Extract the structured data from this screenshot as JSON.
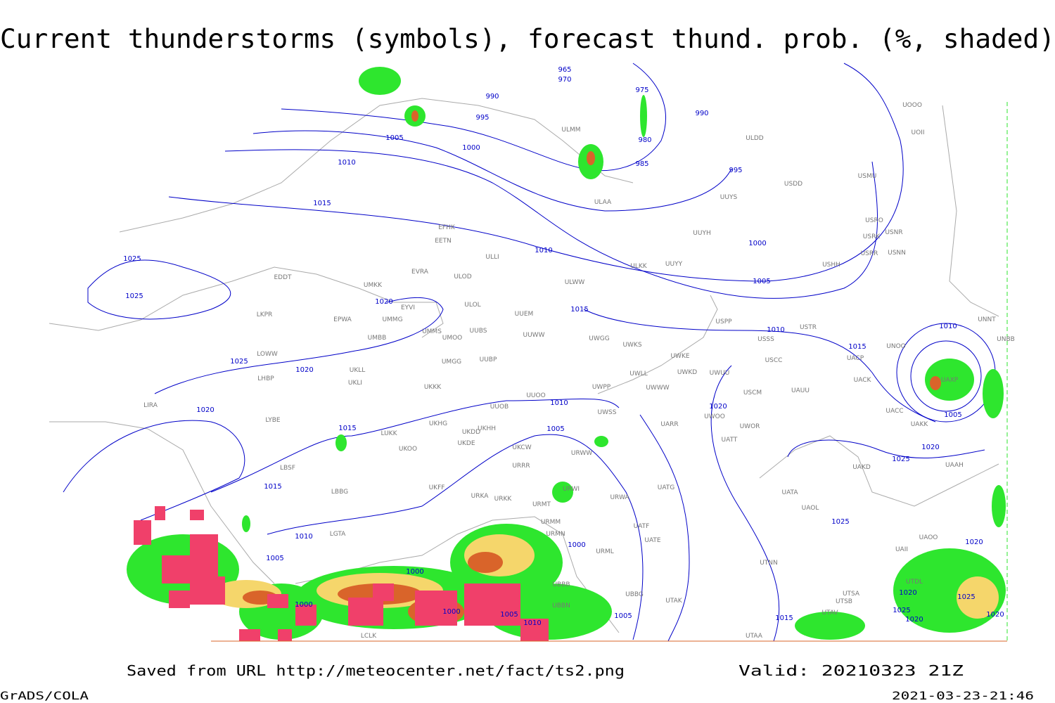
{
  "title": "Current thunderstorms (symbols), forecast thund. prob. (%, shaded)",
  "footer": {
    "source": "Saved from URL http://meteocenter.net/fact/ts2.png",
    "valid": "Valid: 20210323 21Z",
    "software": "GrADS/COLA",
    "timestamp": "2021-03-23-21:46"
  },
  "map": {
    "stations": [
      "UOOO",
      "UOII",
      "ULMM",
      "ULDD",
      "USMU",
      "USDD",
      "UUYS",
      "ULAA",
      "USRO",
      "USNR",
      "USRK",
      "UUYH",
      "EFHK",
      "EETN",
      "USRR",
      "USNN",
      "ULLI",
      "USHH",
      "ULKK",
      "UUYY",
      "EVRA",
      "ULOD",
      "EDDT",
      "UMKK",
      "ULWW",
      "ULOL",
      "EYVI",
      "UUEM",
      "LKPR",
      "EPWA",
      "UMMG",
      "USPP",
      "USTR",
      "UMMS",
      "UUBS",
      "UUWW",
      "UMOO",
      "UWGG",
      "USSS",
      "UMBB",
      "UWKS",
      "UNOO",
      "UNBB",
      "UNNT",
      "LOWW",
      "UWKE",
      "UACP",
      "USCC",
      "UMGG",
      "UUBP",
      "UKLL",
      "UWLL",
      "UWKD",
      "UWUU",
      "UACK",
      "UKLI",
      "LHBP",
      "UWWW",
      "UWPP",
      "USCM",
      "UAUU",
      "UAXP",
      "UKKK",
      "UUOO",
      "LIRA",
      "UUOB",
      "UWSS",
      "UACC",
      "UAKK",
      "LYBE",
      "UKHH",
      "UKHG",
      "UKDD",
      "UARR",
      "UWOO",
      "UWOR",
      "LUKK",
      "UKDE",
      "UATT",
      "UKOO",
      "UKCW",
      "URWW",
      "UAKD",
      "UAAH",
      "LBSF",
      "URRR",
      "UATG",
      "UKFF",
      "URWI",
      "LBBG",
      "URKA",
      "URKK",
      "URWA",
      "URMT",
      "UATA",
      "UAOL",
      "URMM",
      "UATF",
      "UAII",
      "UAOO",
      "UATE",
      "LGTA",
      "URMN",
      "URML",
      "UBBB",
      "UTNN",
      "UTDL",
      "UBBN",
      "UBBG",
      "UTAK",
      "UTSA",
      "UTSB",
      "UTAV",
      "LCLK",
      "UTAA"
    ],
    "isobar_labels": [
      965,
      970,
      975,
      990,
      995,
      990,
      980,
      985,
      995,
      1005,
      1000,
      1010,
      1015,
      1000,
      1005,
      1010,
      1015,
      1010,
      1015,
      1010,
      1005,
      1025,
      1025,
      1020,
      1025,
      1020,
      1010,
      1015,
      1005,
      1020,
      1020,
      1020,
      1025,
      1015,
      1025,
      1010,
      1005,
      1020,
      1000,
      1000,
      1000,
      1000,
      1005,
      1010,
      1005,
      1015,
      1020,
      1025,
      1025,
      1020,
      1020
    ]
  }
}
